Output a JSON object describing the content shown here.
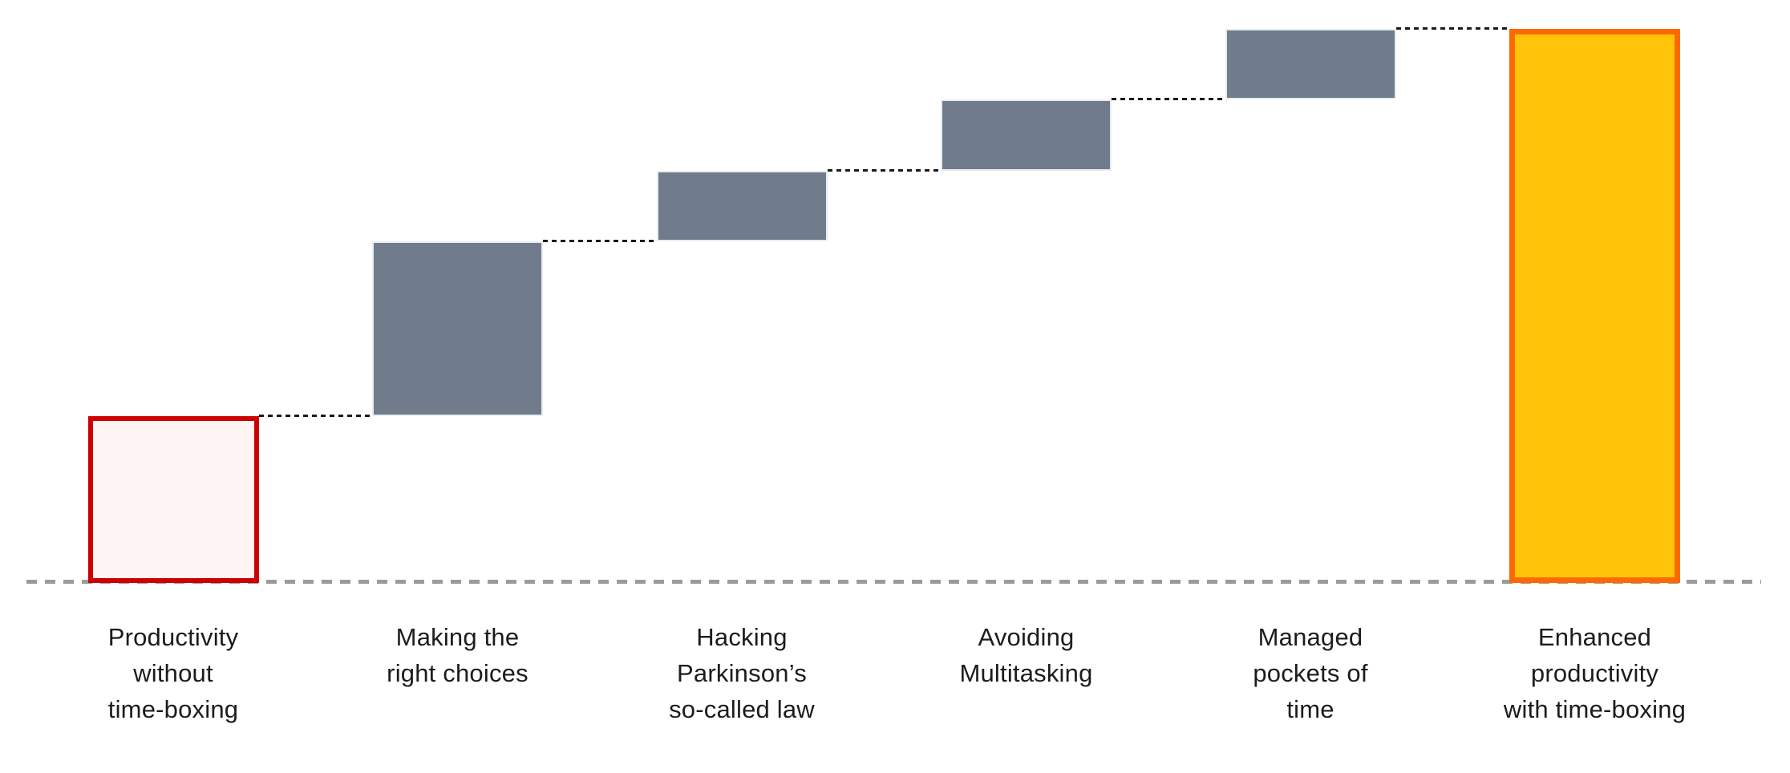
{
  "page": {
    "background": "#FFFFFF"
  },
  "colors": {
    "step_fill": "#707C8B",
    "step_edge": "#E9EDF1",
    "start_border": "#CC0000",
    "start_fill": "#FDF4F3",
    "total_border": "#FB6A00",
    "total_fill": "#FFC40A",
    "connector": "#1A1A1A",
    "baseline": "#9B9B9B",
    "label_text": "#1C1C1C"
  },
  "chart_data": {
    "type": "bar",
    "variant": "waterfall",
    "title": "",
    "orientation": "vertical",
    "axes_visible": false,
    "gridlines": false,
    "legend": false,
    "baseline_style": "dashed-gray",
    "connector_style": "dotted-black",
    "ylim": [
      0,
      100
    ],
    "categories": [
      "Productivity without time-boxing",
      "Making the right choices",
      "Hacking Parkinson’s so-called law",
      "Avoiding Multitasking",
      "Managed pockets of time",
      "Enhanced productivity with time-boxing"
    ],
    "bars": [
      {
        "label": "Productivity\nwithout\ntime-boxing",
        "role": "start",
        "value": 30.1
      },
      {
        "label": "Making the\nright choices",
        "role": "increase",
        "value": 31.5
      },
      {
        "label": "Hacking\nParkinson’s\nso-called law",
        "role": "increase",
        "value": 12.8
      },
      {
        "label": "Avoiding\nMultitasking",
        "role": "increase",
        "value": 12.8
      },
      {
        "label": "Managed\npockets of\ntime",
        "role": "increase",
        "value": 12.8
      },
      {
        "label": "Enhanced\nproductivity\nwith time-boxing",
        "role": "total",
        "value": 100
      }
    ]
  }
}
